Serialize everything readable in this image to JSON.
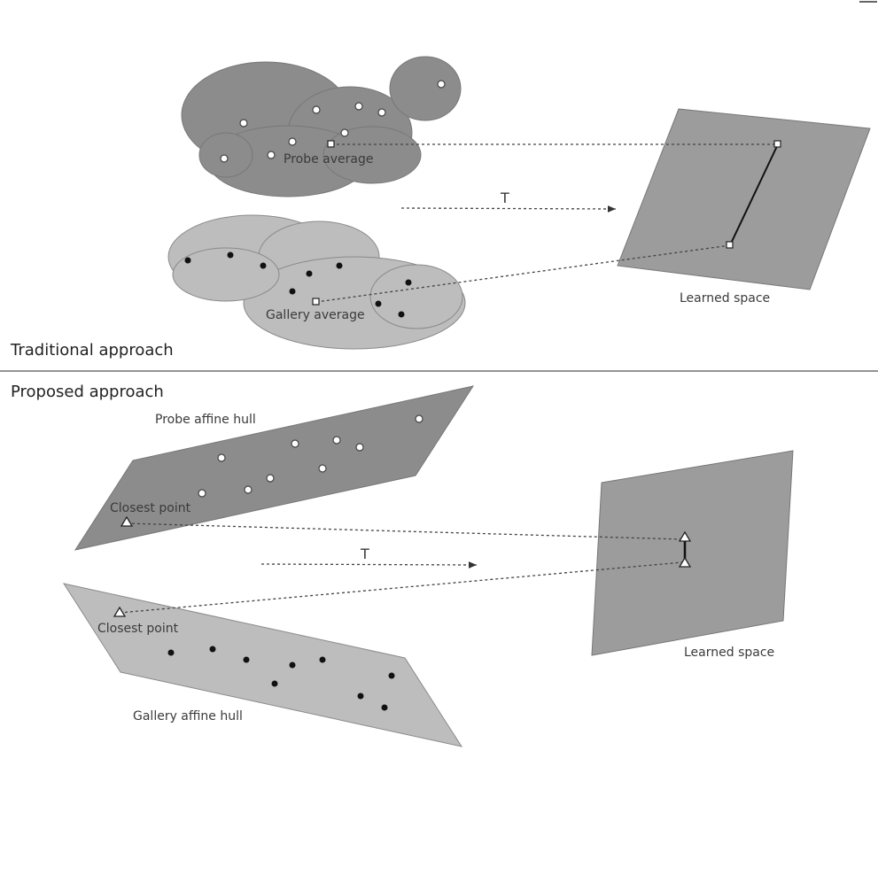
{
  "traditional": {
    "section_title": "Traditional approach",
    "probe_label": "Probe average",
    "gallery_label": "Gallery average",
    "transform_label": "T",
    "space_label": "Learned space"
  },
  "proposed": {
    "section_title": "Proposed approach",
    "probe_hull_label": "Probe affine hull",
    "probe_closest_label": "Closest point",
    "gallery_hull_label": "Gallery affine hull",
    "gallery_closest_label": "Closest point",
    "transform_label": "T",
    "space_label": "Learned space"
  },
  "colors": {
    "probe_region": "#8c8c8c",
    "gallery_region": "#bdbdbd",
    "learned_space": "#9c9c9c",
    "outline": "#7a7a7a",
    "divider": "#555555"
  },
  "legend_icons": [
    "probe-sample-open-circle",
    "gallery-sample-filled-dot",
    "average-square",
    "closest-point-triangle"
  ]
}
